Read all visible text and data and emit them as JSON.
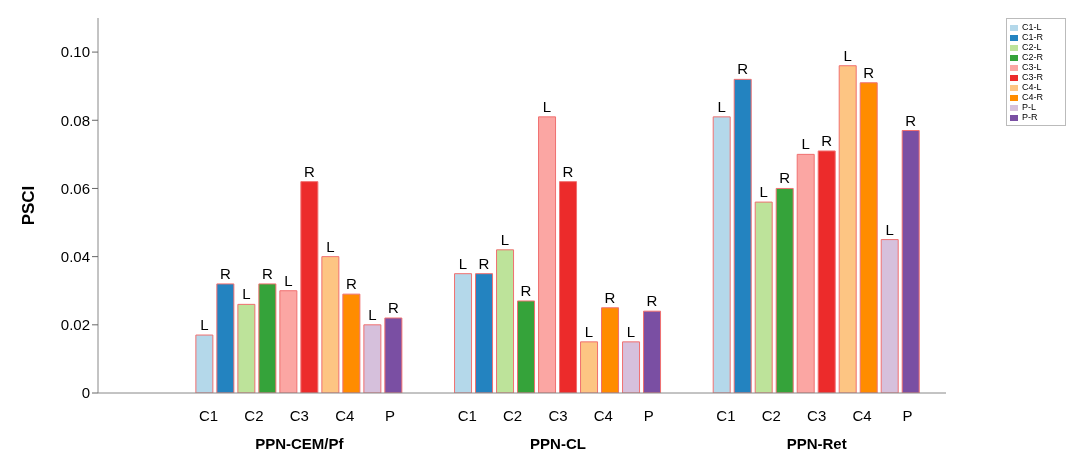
{
  "chart_data": {
    "type": "bar",
    "ylabel": "PSCI",
    "categories": [
      "PPN-CEM/Pf",
      "PPN-CL",
      "PPN-Ret"
    ],
    "series": [
      {
        "name": "C1-L",
        "color": "#b4d8ea",
        "values": [
          0.017,
          0.035,
          0.081
        ],
        "value_labels": [
          "L",
          "L",
          "L"
        ]
      },
      {
        "name": "C1-R",
        "color": "#2383c0",
        "values": [
          0.032,
          0.035,
          0.092
        ],
        "value_labels": [
          "R",
          "R",
          "R"
        ]
      },
      {
        "name": "C2-L",
        "color": "#bde39a",
        "values": [
          0.026,
          0.042,
          0.056
        ],
        "value_labels": [
          "L",
          "L",
          "L"
        ]
      },
      {
        "name": "C2-R",
        "color": "#35a33a",
        "values": [
          0.032,
          0.027,
          0.06
        ],
        "value_labels": [
          "R",
          "R",
          "R"
        ]
      },
      {
        "name": "C3-L",
        "color": "#fba6a3",
        "values": [
          0.03,
          0.081,
          0.07
        ],
        "value_labels": [
          "L",
          "L",
          "L"
        ]
      },
      {
        "name": "C3-R",
        "color": "#ec2b2b",
        "values": [
          0.062,
          0.062,
          0.071
        ],
        "value_labels": [
          "R",
          "R",
          "R"
        ]
      },
      {
        "name": "C4-L",
        "color": "#fdc583",
        "values": [
          0.04,
          0.015,
          0.096
        ],
        "value_labels": [
          "L",
          "L",
          "L"
        ]
      },
      {
        "name": "C4-R",
        "color": "#ff8c00",
        "values": [
          0.029,
          0.025,
          0.091
        ],
        "value_labels": [
          "R",
          "R",
          "R"
        ]
      },
      {
        "name": "P-L",
        "color": "#d6c0dc",
        "values": [
          0.02,
          0.015,
          0.045
        ],
        "value_labels": [
          "L",
          "L",
          "L"
        ]
      },
      {
        "name": "P-R",
        "color": "#7a4fa3",
        "values": [
          0.022,
          0.024,
          0.077
        ],
        "value_labels": [
          "R",
          "R",
          "R"
        ]
      }
    ],
    "annotations": [
      "C1",
      "C2",
      "C3",
      "C4",
      "P",
      "C1",
      "C2",
      "C3",
      "C4",
      "P",
      "C1",
      "C2",
      "C3",
      "C4",
      "P"
    ],
    "ylim": [
      0,
      0.11
    ],
    "yticks": [
      0,
      0.02,
      0.04,
      0.06,
      0.08,
      {
        "value": 0.1,
        "label": "0.10"
      }
    ],
    "grid": false,
    "legend": "top right"
  }
}
